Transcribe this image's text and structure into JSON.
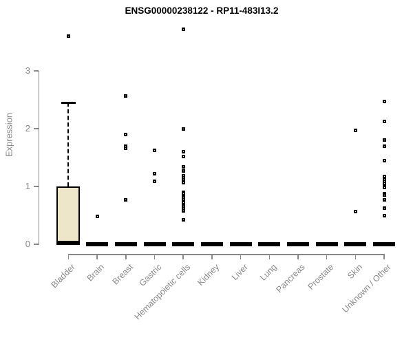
{
  "chart_data": {
    "type": "boxplot",
    "title": "ENSG00000238122 - RP11-483I13.2",
    "ylabel": "Expression",
    "xlabel": "",
    "yticks": [
      0,
      1,
      2,
      3
    ],
    "ylim": [
      0,
      3.9
    ],
    "grid": false,
    "legend": false,
    "categories": [
      "Bladder",
      "Brain",
      "Breast",
      "Gastric",
      "Hematopoietic cells",
      "Kidney",
      "Liver",
      "Lung",
      "Pancreas",
      "Prostate",
      "Skin",
      "Unknown / Other"
    ],
    "boxes": [
      {
        "category": "Bladder",
        "q1": 0,
        "median": 0.03,
        "q3": 1.0,
        "whisker_low": 0,
        "whisker_high": 2.45,
        "outliers": [
          3.6
        ]
      },
      {
        "category": "Brain",
        "q1": 0,
        "median": 0,
        "q3": 0,
        "whisker_low": 0,
        "whisker_high": 0,
        "outliers": [
          0.48
        ]
      },
      {
        "category": "Breast",
        "q1": 0,
        "median": 0,
        "q3": 0,
        "whisker_low": 0,
        "whisker_high": 0,
        "outliers": [
          2.56,
          1.9,
          1.7,
          1.66,
          0.77
        ]
      },
      {
        "category": "Gastric",
        "q1": 0,
        "median": 0,
        "q3": 0,
        "whisker_low": 0,
        "whisker_high": 0,
        "outliers": [
          1.63,
          1.22,
          1.09
        ]
      },
      {
        "category": "Hematopoietic cells",
        "q1": 0,
        "median": 0,
        "q3": 0,
        "whisker_low": 0,
        "whisker_high": 0,
        "outliers": [
          3.72,
          2.0,
          1.6,
          1.52,
          1.34,
          1.27,
          1.19,
          1.15,
          1.11,
          1.06,
          0.9,
          0.87,
          0.84,
          0.81,
          0.78,
          0.75,
          0.72,
          0.69,
          0.66,
          0.63,
          0.58,
          0.42
        ]
      },
      {
        "category": "Kidney",
        "q1": 0,
        "median": 0,
        "q3": 0,
        "whisker_low": 0,
        "whisker_high": 0,
        "outliers": []
      },
      {
        "category": "Liver",
        "q1": 0,
        "median": 0,
        "q3": 0,
        "whisker_low": 0,
        "whisker_high": 0,
        "outliers": []
      },
      {
        "category": "Lung",
        "q1": 0,
        "median": 0,
        "q3": 0,
        "whisker_low": 0,
        "whisker_high": 0,
        "outliers": []
      },
      {
        "category": "Pancreas",
        "q1": 0,
        "median": 0,
        "q3": 0,
        "whisker_low": 0,
        "whisker_high": 0,
        "outliers": []
      },
      {
        "category": "Prostate",
        "q1": 0,
        "median": 0,
        "q3": 0,
        "whisker_low": 0,
        "whisker_high": 0,
        "outliers": []
      },
      {
        "category": "Skin",
        "q1": 0,
        "median": 0,
        "q3": 0,
        "whisker_low": 0,
        "whisker_high": 0,
        "outliers": [
          1.97,
          0.56
        ]
      },
      {
        "category": "Unknown / Other",
        "q1": 0,
        "median": 0,
        "q3": 0,
        "whisker_low": 0,
        "whisker_high": 0,
        "outliers": [
          2.47,
          2.13,
          1.8,
          1.7,
          1.45,
          1.17,
          1.13,
          1.09,
          1.05,
          1.01,
          0.98,
          0.88,
          0.85,
          0.77,
          0.62,
          0.49
        ]
      }
    ],
    "colors": {
      "box_fill": "#EDE6C9",
      "box_border": "#000000",
      "median": "#000000",
      "whisker": "#000000",
      "outlier": "#000000",
      "axis": "#888888",
      "tick_label": "#888888",
      "category_label": "#888888",
      "title": "#000000"
    }
  }
}
